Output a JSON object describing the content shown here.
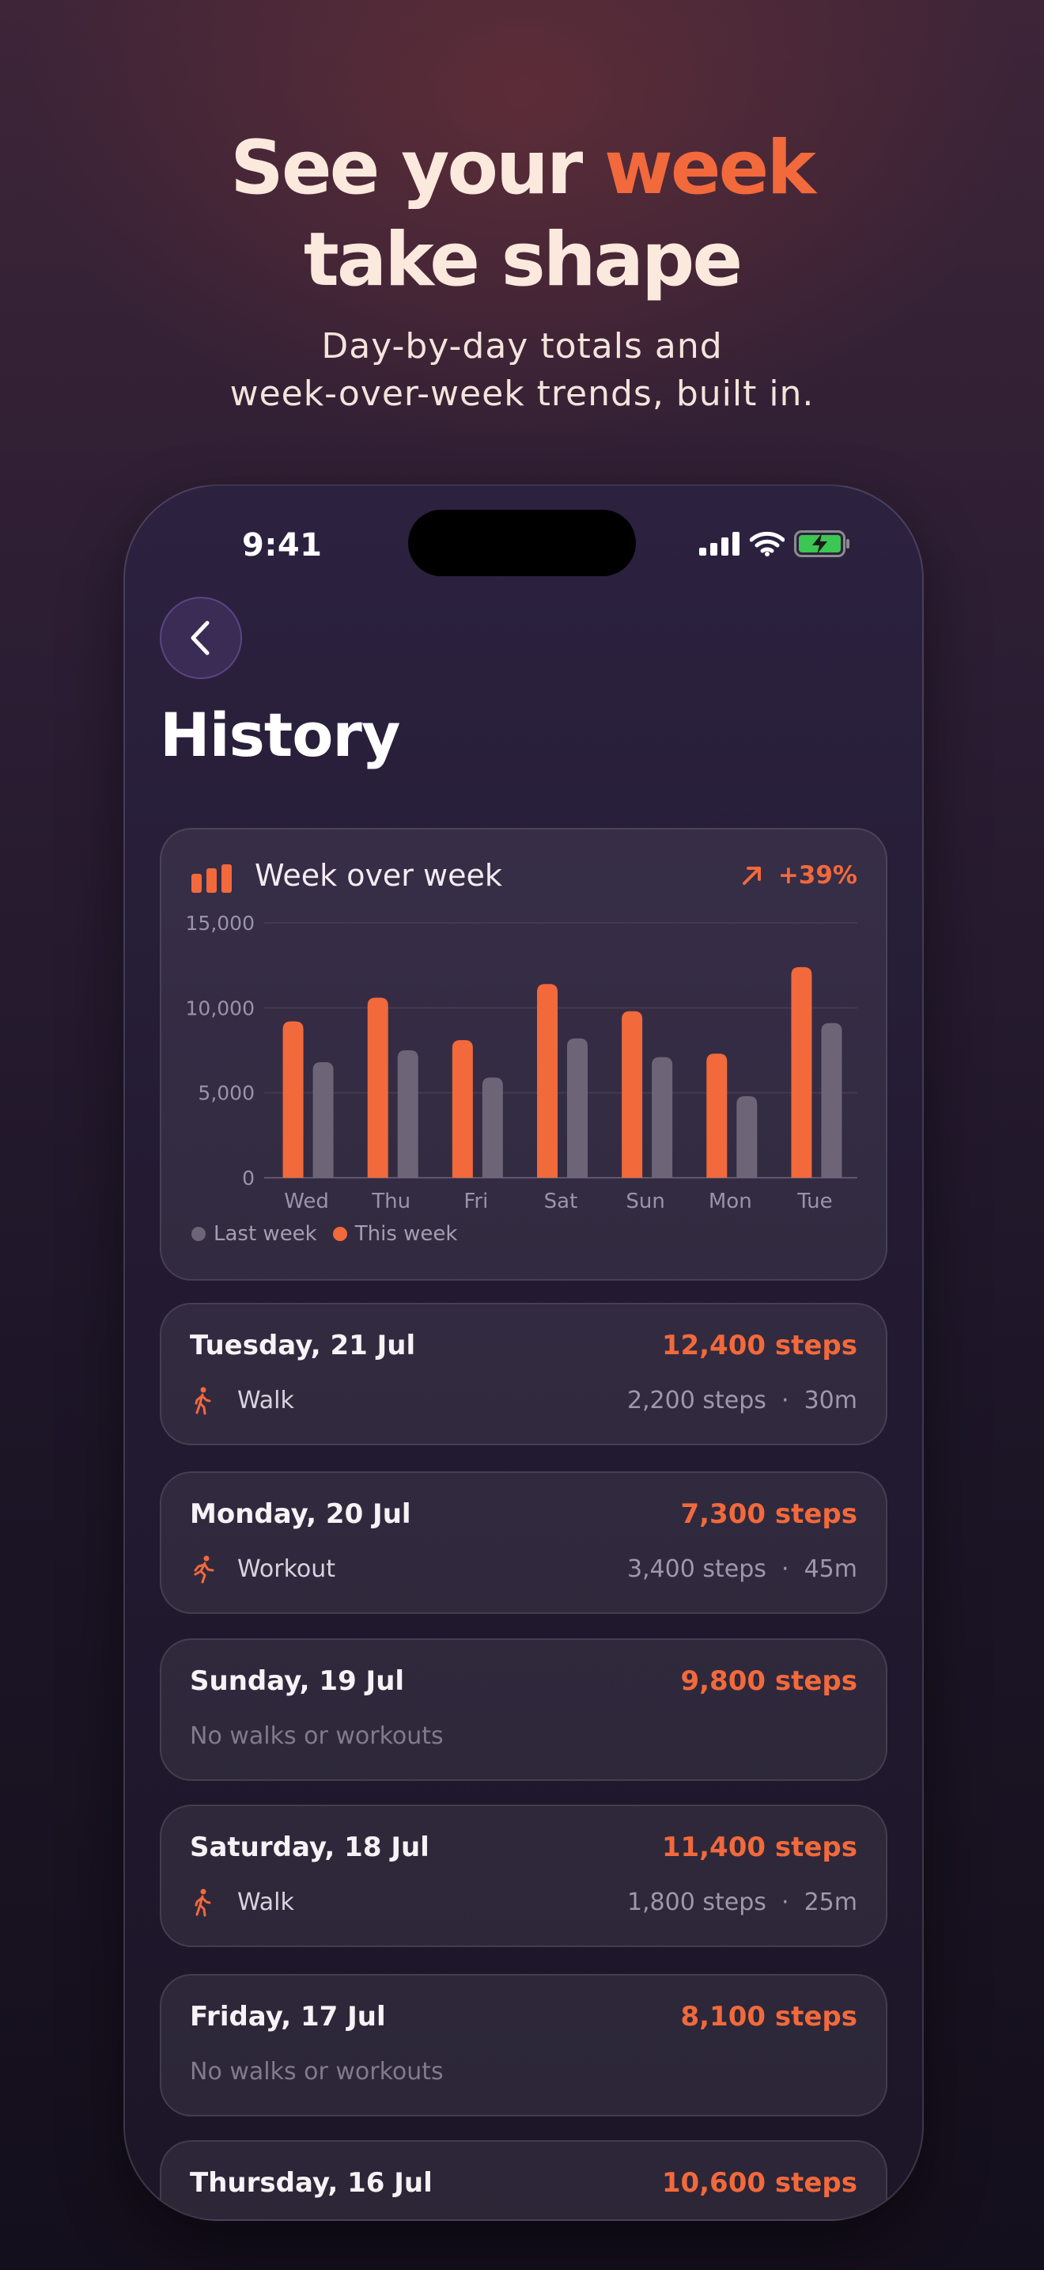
{
  "headline": {
    "line1_a": "See your ",
    "line1_accent": "week",
    "line2": "take shape"
  },
  "subhead": {
    "line1": "Day-by-day totals and",
    "line2": "week-over-week trends, built in."
  },
  "status_bar": {
    "time": "9:41"
  },
  "page": {
    "title": "History"
  },
  "colors": {
    "accent": "#f2693c",
    "last_week": "#6d6577",
    "background": "#1c1526"
  },
  "chart_data": {
    "type": "bar",
    "title": "Week over week",
    "trend": "+39%",
    "categories": [
      "Wed",
      "Thu",
      "Fri",
      "Sat",
      "Sun",
      "Mon",
      "Tue"
    ],
    "series": [
      {
        "name": "This week",
        "color": "#f2693c",
        "values": [
          9200,
          10600,
          8100,
          11400,
          9800,
          7300,
          12400
        ]
      },
      {
        "name": "Last week",
        "color": "#6d6577",
        "values": [
          6800,
          7500,
          5900,
          8200,
          7100,
          4800,
          9100
        ]
      }
    ],
    "yticks": [
      "15,000",
      "10,000",
      "5,000",
      "0"
    ],
    "ylim": [
      0,
      15000
    ],
    "grid": true,
    "legend": [
      "Last week",
      "This week"
    ],
    "legend_placement": "bottom-left"
  },
  "days": [
    {
      "title": "Tuesday, 21 Jul",
      "steps": "12,400 steps",
      "activity": {
        "icon": "walk-icon",
        "name": "Walk",
        "steps": "2,200 steps",
        "sep": "·",
        "duration": "30m"
      }
    },
    {
      "title": "Monday, 20 Jul",
      "steps": "7,300 steps",
      "activity": {
        "icon": "run-icon",
        "name": "Workout",
        "steps": "3,400 steps",
        "sep": "·",
        "duration": "45m"
      }
    },
    {
      "title": "Sunday, 19 Jul",
      "steps": "9,800 steps",
      "none": "No walks or workouts"
    },
    {
      "title": "Saturday, 18 Jul",
      "steps": "11,400 steps",
      "activity": {
        "icon": "walk-icon",
        "name": "Walk",
        "steps": "1,800 steps",
        "sep": "·",
        "duration": "25m"
      }
    },
    {
      "title": "Friday, 17 Jul",
      "steps": "8,100 steps",
      "none": "No walks or workouts"
    },
    {
      "title": "Thursday, 16 Jul",
      "steps": "10,600 steps"
    }
  ]
}
